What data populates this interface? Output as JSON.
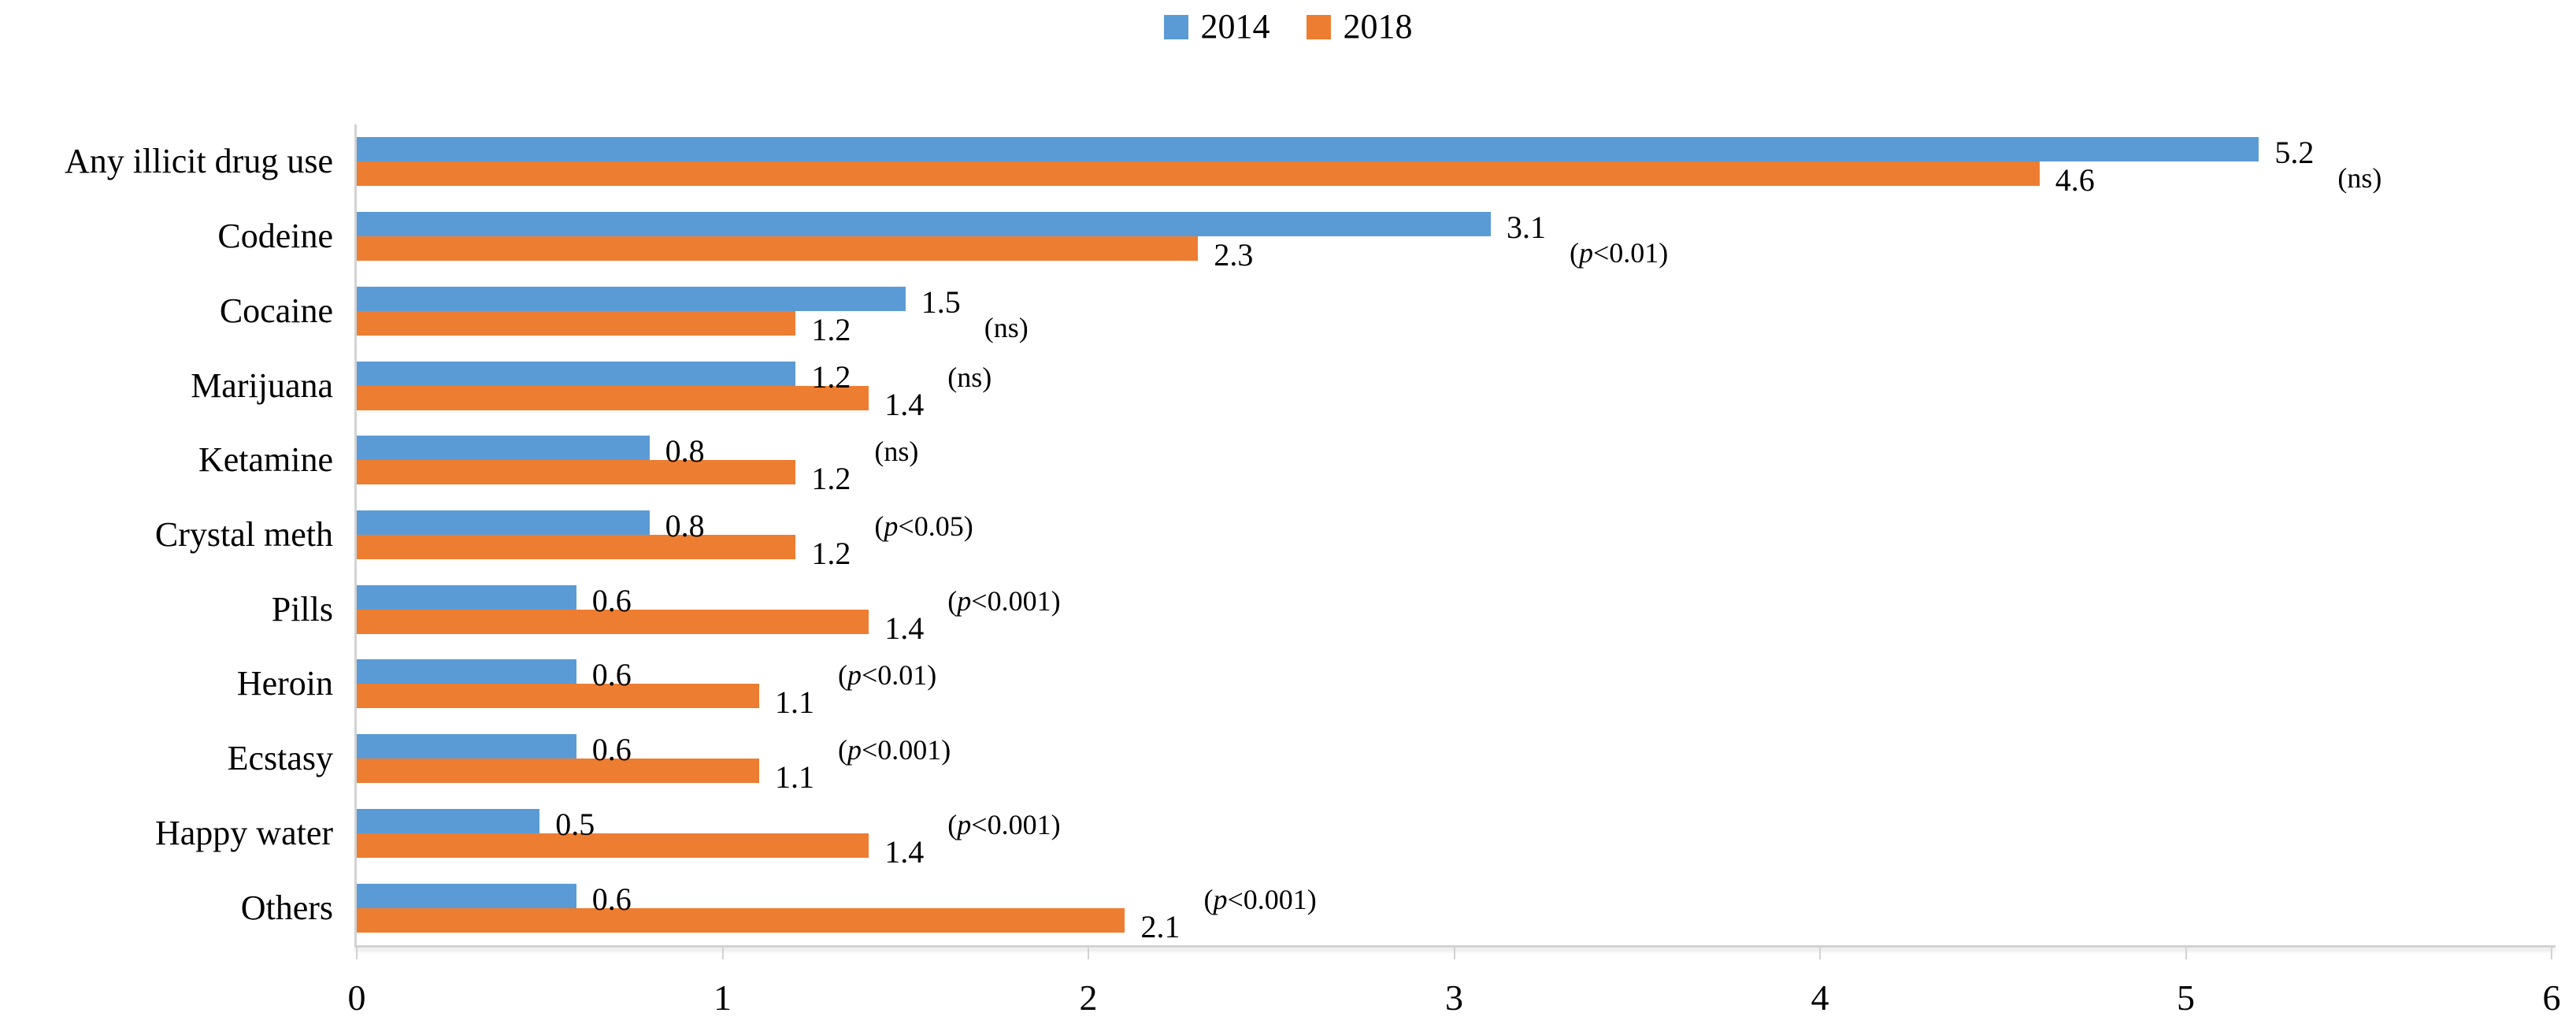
{
  "figure": {
    "background": "#ffffff",
    "text_color": "#000000",
    "axis_color": "#d2d2d2"
  },
  "chart_data": {
    "type": "bar",
    "orientation": "horizontal",
    "title": "",
    "xlabel": "",
    "ylabel": "",
    "categories": [
      "Any illicit drug use",
      "Codeine",
      "Cocaine",
      "Marijuana",
      "Ketamine",
      "Crystal meth",
      "Pills",
      "Heroin",
      "Ecstasy",
      "Happy water",
      "Others"
    ],
    "series": [
      {
        "name": "2014",
        "color": "#5B9BD5",
        "values": [
          5.2,
          3.1,
          1.5,
          1.2,
          0.8,
          0.8,
          0.6,
          0.6,
          0.6,
          0.5,
          0.6
        ]
      },
      {
        "name": "2018",
        "color": "#ED7D31",
        "values": [
          4.6,
          2.3,
          1.2,
          1.4,
          1.2,
          1.2,
          1.4,
          1.1,
          1.1,
          1.4,
          2.1
        ]
      }
    ],
    "annotations": [
      "(ns)",
      "(p<0.01)",
      "(ns)",
      "(ns)",
      "(ns)",
      "(p<0.05)",
      "(p<0.001)",
      "(p<0.01)",
      "(p<0.001)",
      "(p<0.001)",
      "(p<0.001)"
    ],
    "xlim": [
      0,
      6
    ],
    "xticks": [
      0,
      1,
      2,
      3,
      4,
      5,
      6
    ],
    "grid": false,
    "legend_position": "top"
  }
}
